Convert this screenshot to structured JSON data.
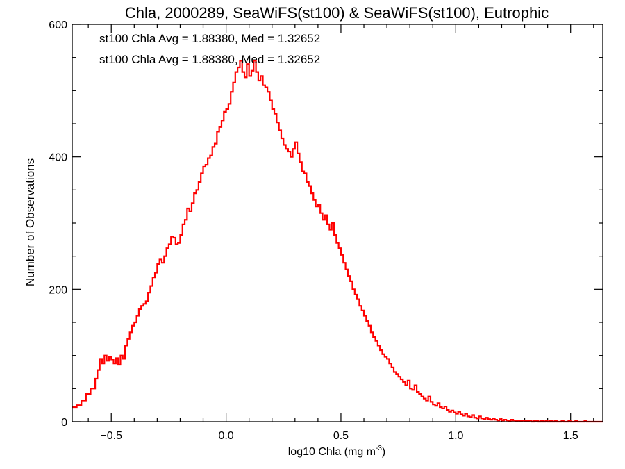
{
  "chart_data": {
    "type": "histogram",
    "title": "Chla, 2000289, SeaWiFS(st100) & SeaWiFS(st100), Eutrophic",
    "xlabel": "log10 Chla (mg m",
    "xlabel_sup": "-3",
    "xlabel_close": ")",
    "ylabel": "Number of Observations",
    "xlim": [
      -0.67,
      1.64
    ],
    "ylim": [
      0,
      600
    ],
    "x_ticks": [
      -0.5,
      0.0,
      0.5,
      1.0,
      1.5
    ],
    "x_tick_labels": [
      "−0.5",
      "0.0",
      "0.5",
      "1.0",
      "1.5"
    ],
    "y_ticks": [
      0,
      200,
      400,
      600
    ],
    "y_tick_labels": [
      "0",
      "200",
      "400",
      "600"
    ],
    "legend_placement": "top-left",
    "annotations": [
      {
        "text": "st100 Chla Avg = 1.88380, Med = 1.32652",
        "color": "#000000"
      },
      {
        "text": "st100 Chla Avg = 1.88380, Med = 1.32652",
        "color": "#ff0000"
      }
    ],
    "series": [
      {
        "color": "#ff0000",
        "bin_width": 0.01,
        "points": [
          [
            -0.67,
            22
          ],
          [
            -0.65,
            25
          ],
          [
            -0.63,
            32
          ],
          [
            -0.61,
            42
          ],
          [
            -0.59,
            50
          ],
          [
            -0.57,
            65
          ],
          [
            -0.56,
            78
          ],
          [
            -0.55,
            95
          ],
          [
            -0.54,
            88
          ],
          [
            -0.53,
            100
          ],
          [
            -0.52,
            92
          ],
          [
            -0.51,
            98
          ],
          [
            -0.5,
            94
          ],
          [
            -0.49,
            88
          ],
          [
            -0.48,
            96
          ],
          [
            -0.47,
            86
          ],
          [
            -0.46,
            100
          ],
          [
            -0.45,
            95
          ],
          [
            -0.44,
            115
          ],
          [
            -0.43,
            125
          ],
          [
            -0.42,
            135
          ],
          [
            -0.41,
            145
          ],
          [
            -0.4,
            150
          ],
          [
            -0.39,
            160
          ],
          [
            -0.38,
            170
          ],
          [
            -0.37,
            175
          ],
          [
            -0.36,
            178
          ],
          [
            -0.35,
            182
          ],
          [
            -0.34,
            195
          ],
          [
            -0.33,
            205
          ],
          [
            -0.32,
            218
          ],
          [
            -0.31,
            225
          ],
          [
            -0.3,
            238
          ],
          [
            -0.29,
            245
          ],
          [
            -0.28,
            240
          ],
          [
            -0.27,
            250
          ],
          [
            -0.26,
            262
          ],
          [
            -0.25,
            268
          ],
          [
            -0.24,
            280
          ],
          [
            -0.23,
            278
          ],
          [
            -0.22,
            268
          ],
          [
            -0.21,
            270
          ],
          [
            -0.2,
            282
          ],
          [
            -0.19,
            298
          ],
          [
            -0.18,
            305
          ],
          [
            -0.17,
            322
          ],
          [
            -0.16,
            318
          ],
          [
            -0.15,
            330
          ],
          [
            -0.14,
            345
          ],
          [
            -0.13,
            350
          ],
          [
            -0.12,
            362
          ],
          [
            -0.11,
            375
          ],
          [
            -0.1,
            385
          ],
          [
            -0.09,
            388
          ],
          [
            -0.08,
            398
          ],
          [
            -0.07,
            402
          ],
          [
            -0.06,
            415
          ],
          [
            -0.05,
            420
          ],
          [
            -0.04,
            438
          ],
          [
            -0.03,
            445
          ],
          [
            -0.02,
            455
          ],
          [
            -0.01,
            468
          ],
          [
            0.0,
            472
          ],
          [
            0.01,
            480
          ],
          [
            0.02,
            498
          ],
          [
            0.03,
            512
          ],
          [
            0.04,
            528
          ],
          [
            0.05,
            535
          ],
          [
            0.06,
            545
          ],
          [
            0.07,
            528
          ],
          [
            0.08,
            520
          ],
          [
            0.09,
            540
          ],
          [
            0.1,
            522
          ],
          [
            0.11,
            530
          ],
          [
            0.12,
            545
          ],
          [
            0.13,
            528
          ],
          [
            0.14,
            515
          ],
          [
            0.15,
            522
          ],
          [
            0.16,
            508
          ],
          [
            0.17,
            505
          ],
          [
            0.18,
            498
          ],
          [
            0.19,
            485
          ],
          [
            0.2,
            472
          ],
          [
            0.21,
            465
          ],
          [
            0.22,
            452
          ],
          [
            0.23,
            440
          ],
          [
            0.24,
            428
          ],
          [
            0.25,
            418
          ],
          [
            0.26,
            412
          ],
          [
            0.27,
            408
          ],
          [
            0.28,
            400
          ],
          [
            0.29,
            412
          ],
          [
            0.3,
            422
          ],
          [
            0.31,
            405
          ],
          [
            0.32,
            392
          ],
          [
            0.33,
            378
          ],
          [
            0.34,
            375
          ],
          [
            0.35,
            362
          ],
          [
            0.36,
            356
          ],
          [
            0.37,
            345
          ],
          [
            0.38,
            335
          ],
          [
            0.39,
            325
          ],
          [
            0.4,
            328
          ],
          [
            0.41,
            315
          ],
          [
            0.42,
            305
          ],
          [
            0.43,
            312
          ],
          [
            0.44,
            298
          ],
          [
            0.45,
            290
          ],
          [
            0.46,
            300
          ],
          [
            0.47,
            282
          ],
          [
            0.48,
            270
          ],
          [
            0.49,
            262
          ],
          [
            0.5,
            252
          ],
          [
            0.51,
            240
          ],
          [
            0.52,
            230
          ],
          [
            0.53,
            220
          ],
          [
            0.54,
            212
          ],
          [
            0.55,
            200
          ],
          [
            0.56,
            192
          ],
          [
            0.57,
            185
          ],
          [
            0.58,
            175
          ],
          [
            0.59,
            168
          ],
          [
            0.6,
            160
          ],
          [
            0.61,
            152
          ],
          [
            0.62,
            145
          ],
          [
            0.63,
            135
          ],
          [
            0.64,
            128
          ],
          [
            0.65,
            122
          ],
          [
            0.66,
            115
          ],
          [
            0.67,
            108
          ],
          [
            0.68,
            102
          ],
          [
            0.69,
            98
          ],
          [
            0.7,
            95
          ],
          [
            0.71,
            88
          ],
          [
            0.72,
            82
          ],
          [
            0.73,
            75
          ],
          [
            0.74,
            72
          ],
          [
            0.75,
            68
          ],
          [
            0.76,
            64
          ],
          [
            0.77,
            60
          ],
          [
            0.78,
            55
          ],
          [
            0.79,
            62
          ],
          [
            0.8,
            50
          ],
          [
            0.81,
            48
          ],
          [
            0.82,
            55
          ],
          [
            0.83,
            45
          ],
          [
            0.84,
            42
          ],
          [
            0.85,
            38
          ],
          [
            0.86,
            35
          ],
          [
            0.87,
            32
          ],
          [
            0.88,
            38
          ],
          [
            0.89,
            30
          ],
          [
            0.9,
            26
          ],
          [
            0.91,
            24
          ],
          [
            0.92,
            28
          ],
          [
            0.93,
            22
          ],
          [
            0.94,
            20
          ],
          [
            0.95,
            23
          ],
          [
            0.96,
            18
          ],
          [
            0.97,
            15
          ],
          [
            0.98,
            17
          ],
          [
            0.99,
            14
          ],
          [
            1.0,
            12
          ],
          [
            1.01,
            15
          ],
          [
            1.02,
            11
          ],
          [
            1.03,
            9
          ],
          [
            1.04,
            12
          ],
          [
            1.05,
            8
          ],
          [
            1.06,
            7
          ],
          [
            1.07,
            10
          ],
          [
            1.08,
            6
          ],
          [
            1.09,
            5
          ],
          [
            1.1,
            8
          ],
          [
            1.11,
            5
          ],
          [
            1.12,
            4
          ],
          [
            1.13,
            6
          ],
          [
            1.14,
            4
          ],
          [
            1.15,
            3
          ],
          [
            1.16,
            5
          ],
          [
            1.17,
            3
          ],
          [
            1.18,
            2
          ],
          [
            1.19,
            4
          ],
          [
            1.2,
            2
          ],
          [
            1.21,
            3
          ],
          [
            1.22,
            2
          ],
          [
            1.23,
            1
          ],
          [
            1.24,
            3
          ],
          [
            1.25,
            2
          ],
          [
            1.26,
            1
          ],
          [
            1.27,
            2
          ],
          [
            1.28,
            1
          ],
          [
            1.29,
            2
          ],
          [
            1.3,
            1
          ],
          [
            1.31,
            1
          ],
          [
            1.32,
            2
          ],
          [
            1.33,
            0
          ],
          [
            1.34,
            1
          ],
          [
            1.35,
            1
          ],
          [
            1.36,
            0
          ],
          [
            1.37,
            1
          ],
          [
            1.38,
            0
          ],
          [
            1.39,
            1
          ],
          [
            1.4,
            0
          ],
          [
            1.41,
            1
          ],
          [
            1.42,
            0
          ],
          [
            1.43,
            1
          ],
          [
            1.44,
            0
          ],
          [
            1.45,
            0
          ],
          [
            1.46,
            1
          ],
          [
            1.47,
            0
          ],
          [
            1.48,
            0
          ],
          [
            1.49,
            1
          ],
          [
            1.5,
            0
          ],
          [
            1.51,
            0
          ],
          [
            1.52,
            1
          ],
          [
            1.53,
            0
          ],
          [
            1.54,
            0
          ],
          [
            1.55,
            0
          ],
          [
            1.56,
            1
          ],
          [
            1.57,
            0
          ],
          [
            1.58,
            0
          ],
          [
            1.59,
            0
          ],
          [
            1.6,
            0
          ],
          [
            1.61,
            0
          ],
          [
            1.62,
            0
          ],
          [
            1.63,
            0
          ]
        ]
      }
    ]
  }
}
